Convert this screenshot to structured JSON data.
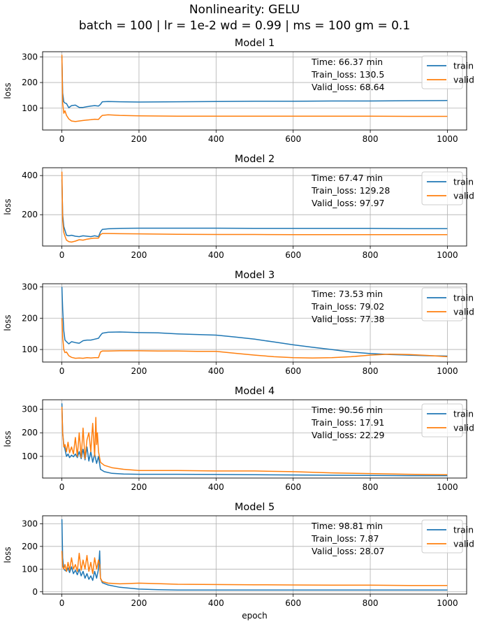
{
  "figure": {
    "title_line1": "Nonlinearity: GELU",
    "title_line2": "batch = 100 | lr = 1e-2 wd = 0.99 | ms = 100 gm = 0.1"
  },
  "colors": {
    "train": "#1f77b4",
    "valid": "#ff7f0e",
    "grid": "#b0b0b0"
  },
  "chart_data": [
    {
      "type": "line",
      "title": "Model 1",
      "xlabel": "",
      "ylabel": "loss",
      "xlim": [
        -50,
        1050
      ],
      "ylim": [
        15,
        320
      ],
      "xticks": [
        0,
        200,
        400,
        600,
        800,
        1000
      ],
      "yticks": [
        100,
        200,
        300
      ],
      "grid": true,
      "legend": "top-right",
      "annotation": [
        "Time: 66.37 min",
        "Train_loss: 130.5",
        "Valid_loss: 68.64"
      ],
      "series": [
        {
          "name": "train",
          "x": [
            0,
            2,
            5,
            8,
            12,
            18,
            25,
            35,
            45,
            55,
            65,
            75,
            85,
            95,
            100,
            105,
            120,
            150,
            200,
            300,
            400,
            500,
            600,
            700,
            800,
            900,
            1000
          ],
          "y": [
            300,
            160,
            125,
            120,
            118,
            102,
            110,
            112,
            103,
            103,
            106,
            108,
            110,
            108,
            115,
            125,
            126,
            125,
            124,
            125,
            126,
            127,
            127,
            128,
            128,
            129,
            130
          ]
        },
        {
          "name": "valid",
          "x": [
            0,
            2,
            5,
            8,
            12,
            18,
            25,
            35,
            45,
            55,
            65,
            75,
            85,
            95,
            100,
            105,
            120,
            150,
            200,
            300,
            400,
            500,
            600,
            700,
            800,
            900,
            1000
          ],
          "y": [
            308,
            120,
            80,
            90,
            72,
            58,
            50,
            48,
            50,
            52,
            54,
            55,
            57,
            56,
            65,
            72,
            74,
            72,
            70,
            69,
            69,
            69,
            69,
            69,
            69,
            68,
            68
          ]
        }
      ]
    },
    {
      "type": "line",
      "title": "Model 2",
      "xlabel": "",
      "ylabel": "loss",
      "xlim": [
        -50,
        1050
      ],
      "ylim": [
        40,
        440
      ],
      "xticks": [
        0,
        200,
        400,
        600,
        800,
        1000
      ],
      "yticks": [
        200,
        400
      ],
      "grid": true,
      "legend": "top-right",
      "annotation": [
        "Time: 67.47 min",
        "Train_loss: 129.28",
        "Valid_loss: 97.97"
      ],
      "series": [
        {
          "name": "train",
          "x": [
            0,
            2,
            5,
            8,
            12,
            18,
            25,
            35,
            45,
            55,
            65,
            75,
            85,
            95,
            100,
            105,
            120,
            150,
            200,
            300,
            400,
            500,
            600,
            700,
            800,
            900,
            1000
          ],
          "y": [
            380,
            200,
            140,
            120,
            95,
            92,
            95,
            90,
            88,
            92,
            90,
            88,
            92,
            88,
            112,
            125,
            128,
            130,
            131,
            131,
            131,
            130,
            130,
            130,
            130,
            129,
            129
          ]
        },
        {
          "name": "valid",
          "x": [
            0,
            2,
            5,
            8,
            12,
            18,
            25,
            35,
            45,
            55,
            65,
            75,
            85,
            95,
            100,
            105,
            120,
            150,
            200,
            300,
            400,
            500,
            600,
            700,
            800,
            900,
            1000
          ],
          "y": [
            420,
            170,
            110,
            90,
            70,
            62,
            60,
            65,
            72,
            70,
            75,
            78,
            80,
            80,
            98,
            104,
            104,
            103,
            102,
            100,
            99,
            99,
            98,
            98,
            98,
            98,
            98
          ]
        }
      ]
    },
    {
      "type": "line",
      "title": "Model 3",
      "xlabel": "",
      "ylabel": "loss",
      "xlim": [
        -50,
        1050
      ],
      "ylim": [
        60,
        310
      ],
      "xticks": [
        0,
        200,
        400,
        600,
        800,
        1000
      ],
      "yticks": [
        100,
        200,
        300
      ],
      "grid": true,
      "legend": "top-right",
      "annotation": [
        "Time: 73.53 min",
        "Train_loss: 79.02",
        "Valid_loss: 77.38"
      ],
      "series": [
        {
          "name": "train",
          "x": [
            0,
            2,
            5,
            8,
            12,
            18,
            25,
            35,
            45,
            55,
            65,
            75,
            85,
            95,
            100,
            105,
            120,
            150,
            200,
            250,
            300,
            350,
            400,
            450,
            500,
            550,
            600,
            650,
            700,
            750,
            800,
            850,
            900,
            950,
            1000
          ],
          "y": [
            300,
            230,
            160,
            130,
            125,
            118,
            125,
            122,
            120,
            128,
            130,
            130,
            133,
            136,
            145,
            152,
            155,
            156,
            154,
            153,
            150,
            148,
            146,
            140,
            133,
            124,
            115,
            107,
            100,
            92,
            87,
            84,
            82,
            80,
            79
          ]
        },
        {
          "name": "valid",
          "x": [
            0,
            2,
            5,
            8,
            12,
            18,
            25,
            35,
            45,
            55,
            65,
            75,
            85,
            95,
            100,
            105,
            120,
            150,
            200,
            250,
            300,
            350,
            400,
            450,
            500,
            550,
            600,
            650,
            700,
            750,
            800,
            850,
            900,
            950,
            1000
          ],
          "y": [
            200,
            140,
            100,
            90,
            92,
            80,
            75,
            72,
            73,
            72,
            74,
            73,
            74,
            74,
            92,
            95,
            95,
            96,
            96,
            95,
            95,
            94,
            94,
            88,
            82,
            77,
            74,
            73,
            74,
            77,
            82,
            85,
            84,
            81,
            77
          ]
        }
      ]
    },
    {
      "type": "line",
      "title": "Model 4",
      "xlabel": "",
      "ylabel": "loss",
      "xlim": [
        -50,
        1050
      ],
      "ylim": [
        8,
        340
      ],
      "xticks": [
        0,
        200,
        400,
        600,
        800,
        1000
      ],
      "yticks": [
        100,
        200,
        300
      ],
      "grid": true,
      "legend": "top-right",
      "annotation": [
        "Time: 90.56 min",
        "Train_loss: 17.91",
        "Valid_loss: 22.29"
      ],
      "series": [
        {
          "name": "train",
          "x": [
            0,
            2,
            5,
            8,
            12,
            16,
            20,
            25,
            30,
            35,
            40,
            45,
            50,
            55,
            60,
            65,
            70,
            75,
            80,
            85,
            90,
            95,
            100,
            110,
            130,
            160,
            200,
            300,
            400,
            500,
            600,
            700,
            800,
            900,
            1000
          ],
          "y": [
            325,
            200,
            150,
            130,
            100,
            110,
            95,
            105,
            98,
            110,
            95,
            120,
            90,
            130,
            85,
            140,
            80,
            120,
            75,
            110,
            70,
            100,
            45,
            35,
            28,
            25,
            24,
            24,
            23,
            22,
            21,
            20,
            19,
            18,
            18
          ]
        },
        {
          "name": "valid",
          "x": [
            0,
            2,
            5,
            8,
            12,
            16,
            20,
            25,
            30,
            35,
            40,
            45,
            50,
            55,
            60,
            65,
            70,
            75,
            80,
            85,
            88,
            90,
            92,
            95,
            100,
            110,
            130,
            160,
            200,
            300,
            400,
            500,
            600,
            700,
            800,
            900,
            1000
          ],
          "y": [
            310,
            200,
            140,
            150,
            120,
            160,
            115,
            140,
            110,
            180,
            100,
            200,
            95,
            220,
            90,
            170,
            200,
            120,
            240,
            100,
            265,
            150,
            200,
            120,
            75,
            62,
            52,
            45,
            40,
            40,
            38,
            38,
            35,
            30,
            27,
            24,
            22
          ]
        }
      ]
    },
    {
      "type": "line",
      "title": "Model 5",
      "xlabel": "epoch",
      "ylabel": "loss",
      "xlim": [
        -50,
        1050
      ],
      "ylim": [
        -10,
        335
      ],
      "xticks": [
        0,
        200,
        400,
        600,
        800,
        1000
      ],
      "yticks": [
        0,
        100,
        200,
        300
      ],
      "grid": true,
      "legend": "top-right",
      "annotation": [
        "Time: 98.81 min",
        "Train_loss: 7.87",
        "Valid_loss: 28.07"
      ],
      "series": [
        {
          "name": "train",
          "x": [
            0,
            2,
            5,
            8,
            12,
            16,
            20,
            25,
            30,
            35,
            40,
            45,
            50,
            55,
            60,
            65,
            70,
            75,
            80,
            85,
            90,
            95,
            98,
            100,
            105,
            120,
            150,
            200,
            250,
            300,
            400,
            500,
            600,
            700,
            800,
            900,
            1000
          ],
          "y": [
            320,
            150,
            100,
            95,
            90,
            105,
            85,
            110,
            80,
            95,
            75,
            100,
            70,
            90,
            60,
            80,
            55,
            70,
            50,
            90,
            60,
            100,
            180,
            60,
            40,
            30,
            20,
            12,
            9,
            8,
            8,
            8,
            8,
            8,
            8,
            8,
            8
          ]
        },
        {
          "name": "valid",
          "x": [
            0,
            2,
            5,
            8,
            12,
            16,
            20,
            25,
            30,
            35,
            40,
            45,
            50,
            55,
            60,
            65,
            70,
            75,
            80,
            85,
            90,
            95,
            98,
            100,
            105,
            120,
            150,
            200,
            250,
            300,
            400,
            500,
            600,
            700,
            800,
            900,
            1000
          ],
          "y": [
            180,
            110,
            100,
            120,
            90,
            130,
            95,
            150,
            100,
            120,
            90,
            170,
            95,
            140,
            100,
            160,
            90,
            130,
            80,
            150,
            100,
            140,
            120,
            60,
            45,
            38,
            35,
            38,
            36,
            33,
            32,
            31,
            30,
            29,
            29,
            28,
            28
          ]
        }
      ]
    }
  ]
}
